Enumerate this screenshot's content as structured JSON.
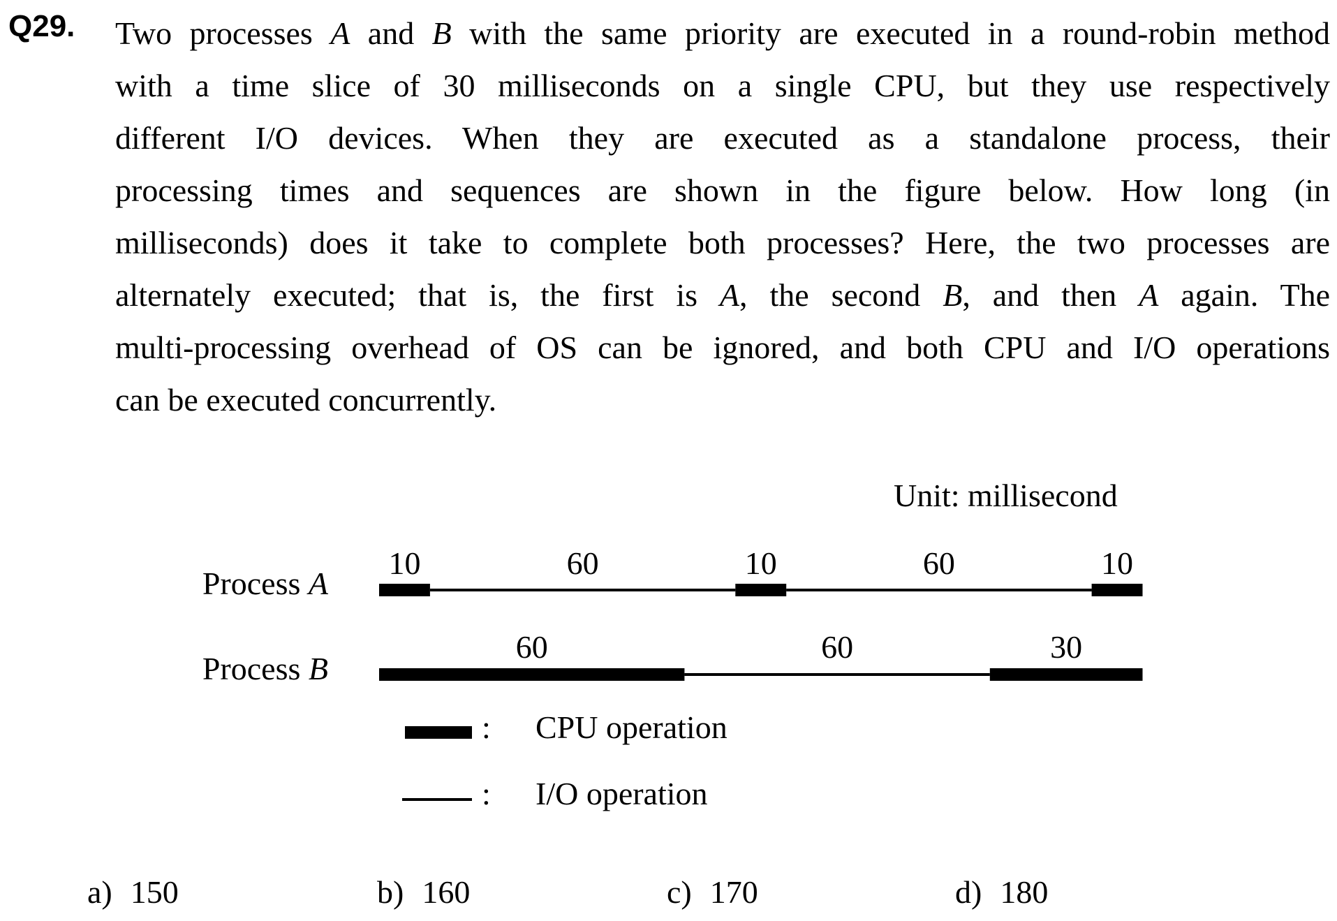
{
  "question": {
    "number": "Q29.",
    "lines": [
      [
        {
          "t": "Two processes "
        },
        {
          "t": "A",
          "i": true
        },
        {
          "t": " and "
        },
        {
          "t": "B",
          "i": true
        },
        {
          "t": " with the same priority are executed in a round-robin method"
        }
      ],
      [
        {
          "t": "with a time slice of 30 milliseconds on a single CPU, but they use respectively"
        }
      ],
      [
        {
          "t": "different I/O devices. When they are executed as a standalone process, their"
        }
      ],
      [
        {
          "t": "processing times and sequences are shown in the figure below.  How long (in"
        }
      ],
      [
        {
          "t": "milliseconds) does it take to complete both processes?  Here, the two processes are"
        }
      ],
      [
        {
          "t": "alternately executed; that is, the first is "
        },
        {
          "t": "A",
          "i": true
        },
        {
          "t": ", the second "
        },
        {
          "t": "B",
          "i": true
        },
        {
          "t": ", and then "
        },
        {
          "t": "A",
          "i": true
        },
        {
          "t": " again.  The"
        }
      ],
      [
        {
          "t": "multi-processing overhead of OS can be ignored, and both CPU and I/O operations"
        }
      ],
      [
        {
          "t": "can be executed concurrently."
        }
      ]
    ]
  },
  "figure": {
    "unit_label": "Unit: millisecond",
    "process_a": {
      "label_prefix": "Process ",
      "label_name": "A",
      "segments": [
        {
          "kind": "cpu",
          "duration": 10,
          "label": "10"
        },
        {
          "kind": "io",
          "duration": 60,
          "label": "60"
        },
        {
          "kind": "cpu",
          "duration": 10,
          "label": "10"
        },
        {
          "kind": "io",
          "duration": 60,
          "label": "60"
        },
        {
          "kind": "cpu",
          "duration": 10,
          "label": "10"
        }
      ]
    },
    "process_b": {
      "label_prefix": "Process ",
      "label_name": "B",
      "segments": [
        {
          "kind": "cpu",
          "duration": 60,
          "label": "60"
        },
        {
          "kind": "io",
          "duration": 60,
          "label": "60"
        },
        {
          "kind": "cpu",
          "duration": 30,
          "label": "30"
        }
      ]
    },
    "legend": {
      "colon": ":",
      "cpu_label": "CPU operation",
      "io_label": "I/O operation"
    }
  },
  "choices": [
    {
      "letter": "a)",
      "value": "150"
    },
    {
      "letter": "b)",
      "value": "160"
    },
    {
      "letter": "c)",
      "value": "170"
    },
    {
      "letter": "d)",
      "value": "180"
    }
  ]
}
